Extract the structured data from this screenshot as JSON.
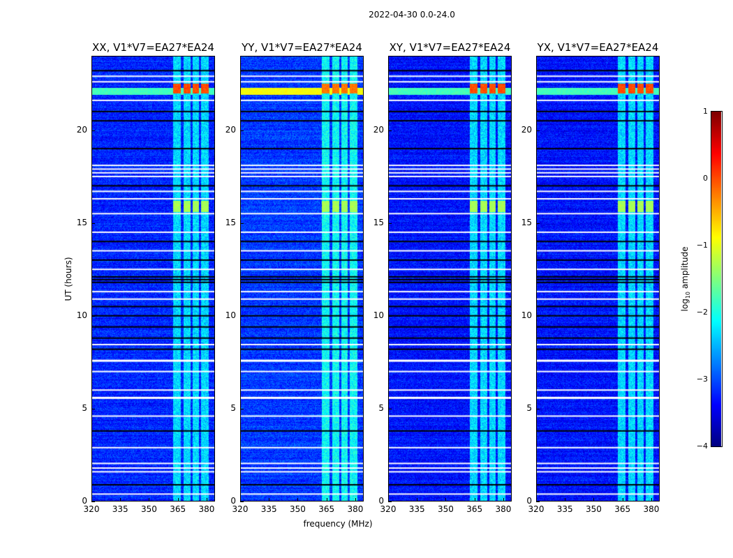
{
  "chart_data": {
    "type": "heatmap",
    "title": "2022-04-30 0.0-24.0",
    "xlabel": "frequency (MHz)",
    "ylabel": "UT (hours)",
    "xlim": [
      320,
      384.4
    ],
    "ylim": [
      0,
      24
    ],
    "xticks": [
      "320",
      "335",
      "350",
      "365",
      "380"
    ],
    "yticks": [
      "0",
      "5",
      "10",
      "15",
      "20"
    ],
    "panels": [
      {
        "title": "XX, V1*V7=EA27*EA24",
        "rfi_level": -2.3,
        "strong_level": 0.0,
        "bg_level": -3.2
      },
      {
        "title": "YY, V1*V7=EA27*EA24",
        "rfi_level": -2.1,
        "strong_level": -0.2,
        "bg_level": -3.1
      },
      {
        "title": "XY, V1*V7=EA27*EA24",
        "rfi_level": -2.3,
        "strong_level": 0.0,
        "bg_level": -3.3
      },
      {
        "title": "YX, V1*V7=EA27*EA24",
        "rfi_level": -2.3,
        "strong_level": 0.0,
        "bg_level": -3.3
      }
    ],
    "rfi_channels_mhz": [
      [
        362.5,
        366.5
      ],
      [
        368,
        371.5
      ],
      [
        372.5,
        376
      ],
      [
        377,
        381
      ]
    ],
    "strong_rfi_hours": [
      [
        15.6,
        16.2
      ],
      [
        22.0,
        22.5
      ]
    ],
    "flagged_hours_white": [
      0.4,
      1.6,
      1.8,
      2.05,
      2.9,
      4.6,
      5.6,
      6.0,
      7.0,
      7.6,
      8.45,
      10.9,
      11.3,
      12.5,
      13.5,
      14.5,
      15.5,
      16.3,
      16.7,
      17.5,
      17.7,
      17.9,
      18.1,
      21.6,
      22.6,
      22.9
    ],
    "flagged_hours_black": [
      0.9,
      3.8,
      8.2,
      8.8,
      9.4,
      10.0,
      10.5,
      11.8,
      11.95,
      12.1,
      13.0,
      14.0,
      17.0,
      19.0,
      20.5,
      21.0,
      23.2
    ],
    "colorbar": {
      "label": "log10 amplitude",
      "label_main": "log",
      "label_sub": "10",
      "label_rest": " amplitude",
      "range": [
        -4,
        1
      ],
      "ticks": [
        "−4",
        "−3",
        "−2",
        "−1",
        "0",
        "1"
      ],
      "colormap": "jet"
    }
  }
}
